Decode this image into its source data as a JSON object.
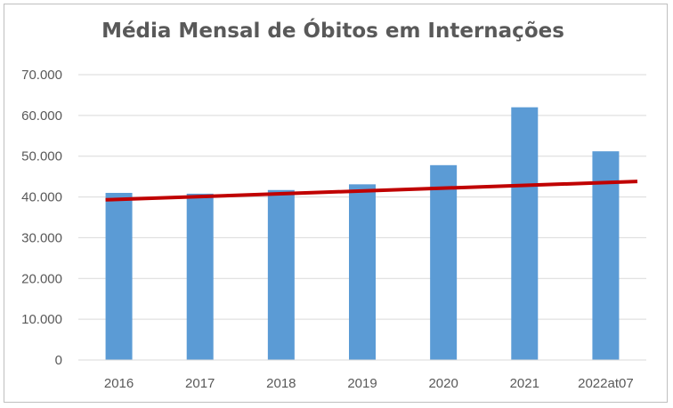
{
  "chart_data": {
    "type": "bar",
    "title": "Média Mensal de Óbitos em Internações",
    "xlabel": "",
    "ylabel": "",
    "categories": [
      "2016",
      "2017",
      "2018",
      "2019",
      "2020",
      "2021",
      "2022at07"
    ],
    "values": [
      41000,
      40800,
      41700,
      43100,
      47800,
      62000,
      51200
    ],
    "trendline": {
      "type": "linear",
      "color": "#c00000",
      "start_value": 39300,
      "end_value": 43800
    },
    "ylim": [
      0,
      70000
    ],
    "yticks": [
      0,
      10000,
      20000,
      30000,
      40000,
      50000,
      60000,
      70000
    ],
    "ytick_labels": [
      "0",
      "10.000",
      "20.000",
      "30.000",
      "40.000",
      "50.000",
      "60.000",
      "70.000"
    ],
    "grid": true,
    "legend": "none",
    "bar_color": "#5b9bd5",
    "grid_color": "#d9d9d9"
  }
}
